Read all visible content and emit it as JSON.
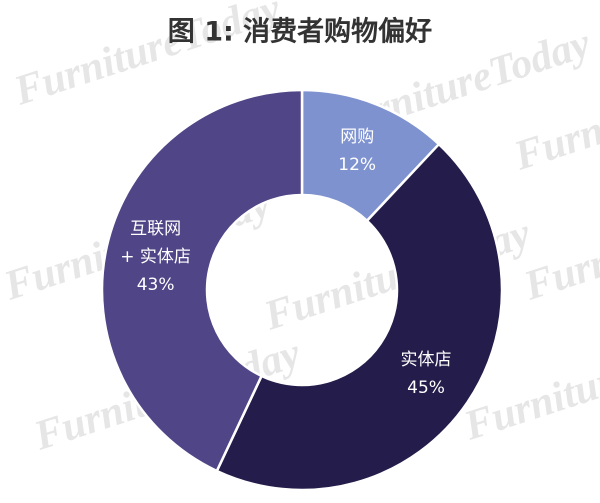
{
  "chart_data": {
    "type": "pie",
    "title": "图 1: 消费者购物偏好",
    "watermark": "FurnitureToday",
    "categories": [
      "网购",
      "实体店",
      "互联网\n+ 实体店"
    ],
    "values": [
      12,
      45,
      43
    ],
    "value_labels": [
      "12%",
      "45%",
      "43%"
    ],
    "colors": [
      "#7f92d0",
      "#241c4a",
      "#4f4587"
    ],
    "donut": true
  }
}
